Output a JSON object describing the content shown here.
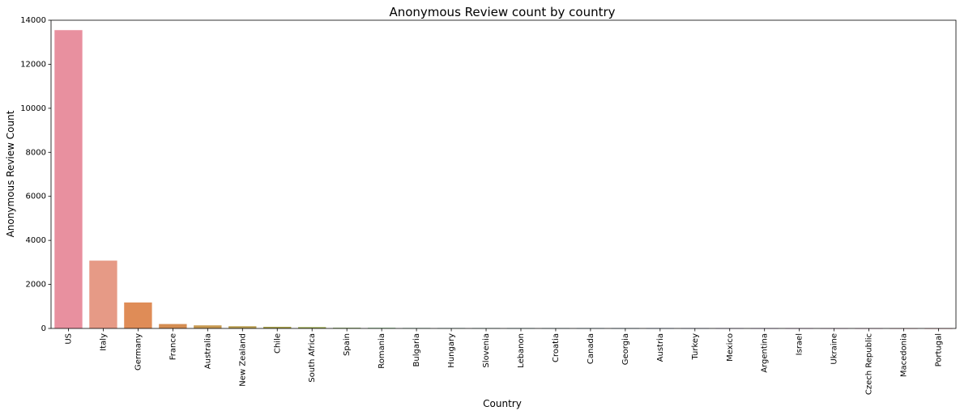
{
  "chart_data": {
    "type": "bar",
    "title": "Anonymous Review count by country",
    "xlabel": "Country",
    "ylabel": "Anonymous Review Count",
    "ylim": [
      0,
      14000
    ],
    "yticks": [
      0,
      2000,
      4000,
      6000,
      8000,
      10000,
      12000,
      14000
    ],
    "grid": false,
    "categories": [
      "US",
      "Italy",
      "Germany",
      "France",
      "Australia",
      "New Zealand",
      "Chile",
      "South Africa",
      "Spain",
      "Romania",
      "Bulgaria",
      "Hungary",
      "Slovenia",
      "Lebanon",
      "Croatia",
      "Canada",
      "Georgia",
      "Austria",
      "Turkey",
      "Mexico",
      "Argentina",
      "Israel",
      "Ukraine",
      "Czech Republic",
      "Macedonia",
      "Portugal"
    ],
    "values": [
      13550,
      3080,
      1180,
      200,
      140,
      100,
      75,
      60,
      30,
      25,
      20,
      18,
      16,
      15,
      12,
      12,
      10,
      10,
      9,
      8,
      7,
      6,
      5,
      3,
      2,
      1
    ],
    "colors": [
      "#e8909f",
      "#e69a86",
      "#df8c57",
      "#d48d52",
      "#c79a52",
      "#b89d50",
      "#a6a04c",
      "#95a44a",
      "#7ca94b",
      "#53ab52",
      "#4fab76",
      "#52aa8a",
      "#54aa97",
      "#55a9a4",
      "#57a8b3",
      "#59a7c2",
      "#5ba5d2",
      "#6aa0e3",
      "#8b97e8",
      "#a88de6",
      "#c083e4",
      "#d37be1",
      "#e077cf",
      "#e57ab6",
      "#e6819f",
      "#e8878f"
    ]
  }
}
